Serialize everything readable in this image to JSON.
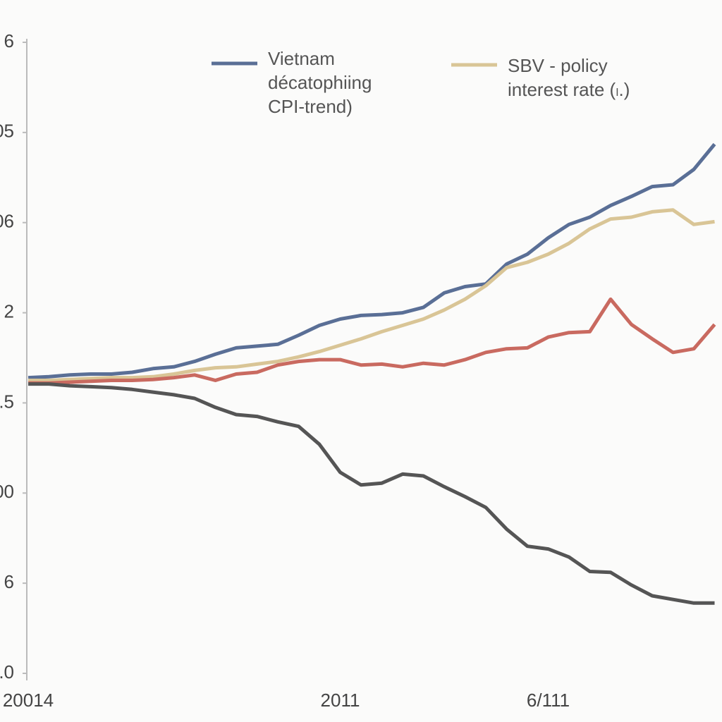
{
  "chart_data": {
    "type": "line",
    "categories": [
      "20014",
      null,
      null,
      null,
      null,
      null,
      null,
      null,
      null,
      null,
      null,
      null,
      null,
      null,
      null,
      "2011",
      null,
      null,
      null,
      null,
      null,
      null,
      null,
      null,
      null,
      "6/111",
      null,
      null,
      null,
      null,
      null,
      null,
      null,
      null
    ],
    "series": [
      {
        "name": "Vietnam\ndécatophiing\nCPI-trend)",
        "color": "#5a6f96",
        "values": [
          3.28,
          3.29,
          3.31,
          3.32,
          3.32,
          3.34,
          3.38,
          3.4,
          3.46,
          3.54,
          3.61,
          3.63,
          3.65,
          3.75,
          3.86,
          3.93,
          3.97,
          3.98,
          4.0,
          4.06,
          4.22,
          4.29,
          4.32,
          4.54,
          4.65,
          4.83,
          4.98,
          5.06,
          5.19,
          5.29,
          5.4,
          5.42,
          5.59,
          5.87
        ]
      },
      {
        "name": "SBV - policy\ninterest rate (ₗ.)",
        "color": "#d9c596",
        "values": [
          3.25,
          3.25,
          3.26,
          3.27,
          3.28,
          3.28,
          3.29,
          3.32,
          3.36,
          3.39,
          3.4,
          3.43,
          3.46,
          3.51,
          3.57,
          3.64,
          3.71,
          3.79,
          3.86,
          3.93,
          4.03,
          4.15,
          4.3,
          4.5,
          4.56,
          4.65,
          4.77,
          4.93,
          5.04,
          5.06,
          5.12,
          5.14,
          4.98,
          5.01
        ]
      },
      {
        "color": "#c96a60",
        "values": [
          3.22,
          3.22,
          3.23,
          3.24,
          3.25,
          3.25,
          3.26,
          3.28,
          3.31,
          3.25,
          3.32,
          3.34,
          3.42,
          3.46,
          3.48,
          3.48,
          3.42,
          3.43,
          3.4,
          3.44,
          3.42,
          3.48,
          3.56,
          3.6,
          3.61,
          3.73,
          3.78,
          3.79,
          4.15,
          3.87,
          3.71,
          3.56,
          3.6,
          3.87
        ]
      },
      {
        "color": "#555555",
        "values": [
          3.21,
          3.21,
          3.19,
          3.18,
          3.17,
          3.15,
          3.12,
          3.09,
          3.05,
          2.95,
          2.87,
          2.85,
          2.79,
          2.74,
          2.54,
          2.23,
          2.09,
          2.11,
          2.21,
          2.19,
          2.07,
          1.96,
          1.84,
          1.6,
          1.41,
          1.38,
          1.29,
          1.13,
          1.12,
          0.98,
          0.86,
          0.82,
          0.78,
          0.78
        ]
      }
    ],
    "ylim": [
      0,
      7.0
    ],
    "yticks": [
      {
        "value": 0,
        "label": ".0"
      },
      {
        "value": 1,
        "label": "6"
      },
      {
        "value": 2,
        "label": "00"
      },
      {
        "value": 3,
        "label": ".5"
      },
      {
        "value": 4,
        "label": "2"
      },
      {
        "value": 5,
        "label": "06"
      },
      {
        "value": 6,
        "label": "05"
      },
      {
        "value": 7,
        "label": "6"
      }
    ],
    "legend": "top",
    "grid": false
  }
}
